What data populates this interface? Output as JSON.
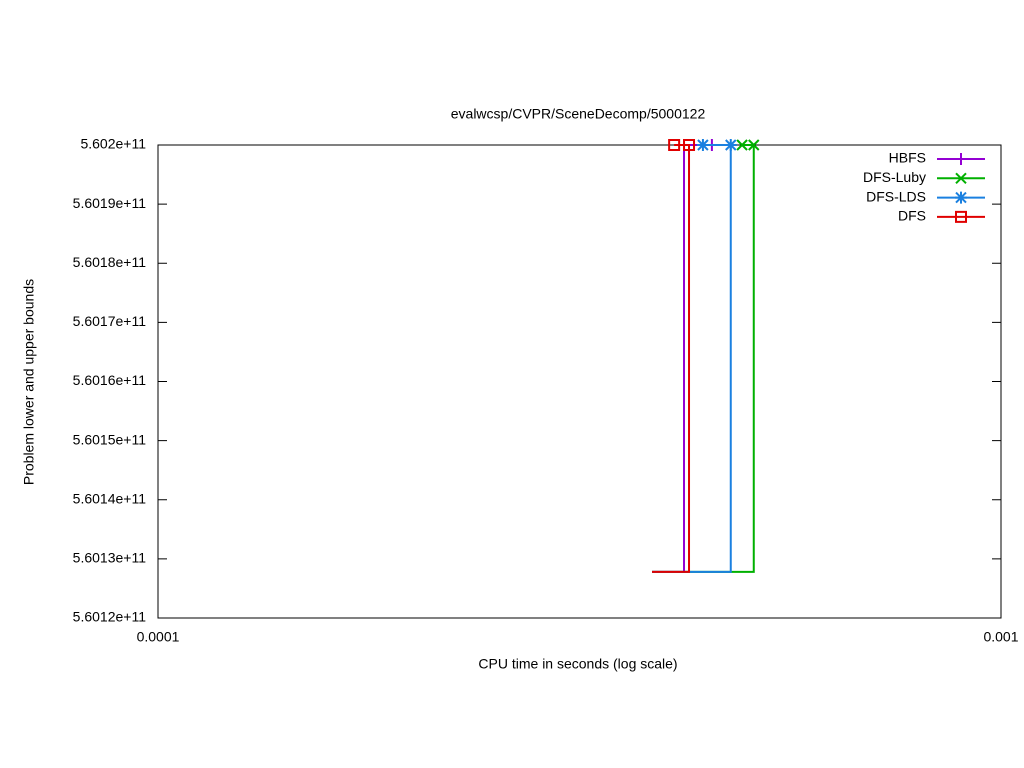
{
  "chart_data": {
    "type": "line",
    "title": "evalwcsp/CVPR/SceneDecomp/5000122",
    "xlabel": "CPU time in seconds (log scale)",
    "ylabel": "Problem lower and upper bounds",
    "xlog": true,
    "xlim": [
      0.0001,
      0.001
    ],
    "xticks": [
      0.0001,
      0.001
    ],
    "ylim": [
      560120000000,
      560200000000
    ],
    "yticks": [
      {
        "value": 560120000000,
        "label": "5.6012e+11"
      },
      {
        "value": 560130000000,
        "label": "5.6013e+11"
      },
      {
        "value": 560140000000,
        "label": "5.6014e+11"
      },
      {
        "value": 560150000000,
        "label": "5.6015e+11"
      },
      {
        "value": 560160000000,
        "label": "5.6016e+11"
      },
      {
        "value": 560170000000,
        "label": "5.6017e+11"
      },
      {
        "value": 560180000000,
        "label": "5.6018e+11"
      },
      {
        "value": 560190000000,
        "label": "5.6019e+11"
      },
      {
        "value": 560200000000,
        "label": "5.602e+11"
      }
    ],
    "legend": "top-right",
    "series": [
      {
        "name": "HBFS",
        "color": "#9400d3",
        "marker": "plus",
        "x": [
          0.0003855,
          0.0004207,
          0.0004207,
          0.000454
        ],
        "values": [
          560127800000,
          560127800000,
          560200000000,
          560200000000
        ]
      },
      {
        "name": "DFS-Luby",
        "color": "#00b000",
        "marker": "cross",
        "x": [
          0.0003855,
          0.000509,
          0.000509,
          0.000493
        ],
        "values": [
          560127800000,
          560127800000,
          560200000000,
          560200000000
        ]
      },
      {
        "name": "DFS-LDS",
        "color": "#1a80e0",
        "marker": "star",
        "x": [
          0.0003855,
          0.000478,
          0.000478,
          0.000443
        ],
        "values": [
          560127800000,
          560127800000,
          560200000000,
          560200000000
        ]
      },
      {
        "name": "DFS",
        "color": "#e00000",
        "marker": "square",
        "x": [
          0.0003855,
          0.0004265,
          0.0004265,
          0.0004095
        ],
        "values": [
          560127800000,
          560127800000,
          560200000000,
          560200000000
        ]
      }
    ]
  }
}
